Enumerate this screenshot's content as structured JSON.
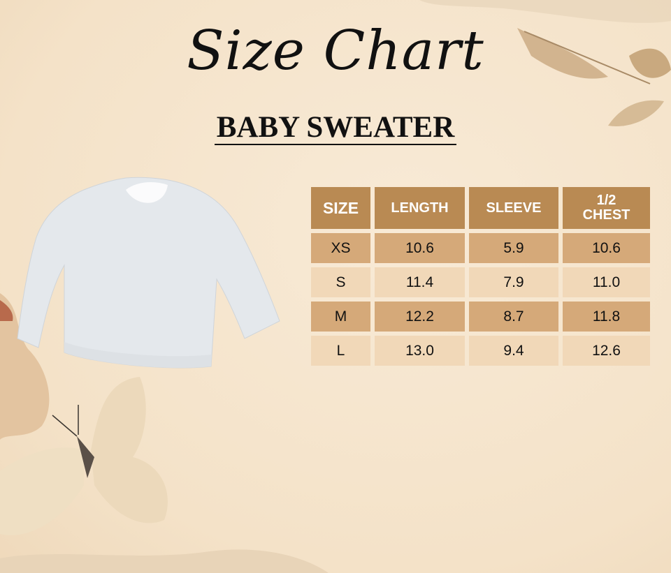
{
  "title": "Size Chart",
  "subtitle": "BABY SWEATER",
  "colors": {
    "header": "#b98a53",
    "row_dark": "#d5a979",
    "row_light": "#f1d8b8",
    "background": "#f6e6cf",
    "garment": "#e6e9ec"
  },
  "table": {
    "headers": [
      "SIZE",
      "LENGTH",
      "SLEEVE",
      "1/2 CHEST"
    ],
    "rows": [
      [
        "XS",
        "10.6",
        "5.9",
        "10.6"
      ],
      [
        "S",
        "11.4",
        "7.9",
        "11.0"
      ],
      [
        "M",
        "12.2",
        "8.7",
        "11.8"
      ],
      [
        "L",
        "13.0",
        "9.4",
        "12.6"
      ]
    ]
  },
  "images": {
    "product": "sweater-image",
    "decorations": [
      "paper-leaves",
      "paper-butterfly",
      "torn-paper"
    ]
  }
}
